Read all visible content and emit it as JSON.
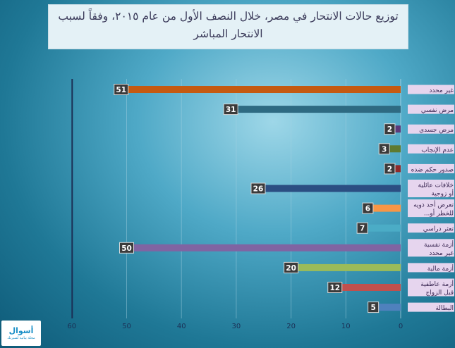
{
  "title": "توزيع حالات الانتحار في مصر، خلال النصف الأول من عام ٢٠١٥، وفقاً لسبب الانتحار المباشر",
  "logo": {
    "name": "أسوال",
    "tagline": "مجلة بيانية لسيرتك"
  },
  "chart_data": {
    "type": "bar",
    "orientation": "horizontal",
    "x_direction": "reversed",
    "xlim": [
      0,
      60
    ],
    "xticks": [
      60,
      50,
      40,
      30,
      20,
      10,
      0
    ],
    "grid": true,
    "legend": "none",
    "categories": [
      "غير محدد",
      "مرض نفسي",
      "مرض جسدي",
      "عدم الإنجاب",
      "صدور حكم ضده",
      "خلافات عائلية أو زوجية",
      "تعرض أحد ذويه للخطر أو...",
      "تعثر دراسي",
      "أزمة نفسية غير محدد سببها",
      "أزمة مالية",
      "أزمة عاطفية قبل الزواج",
      "البطالة"
    ],
    "values": [
      51,
      31,
      2,
      3,
      2,
      26,
      6,
      7,
      50,
      20,
      12,
      5
    ],
    "colors": [
      "#c55a11",
      "#2e6a82",
      "#5b3a7a",
      "#5e7a30",
      "#8e2a2a",
      "#2b4e82",
      "#f79646",
      "#4bacc6",
      "#8064a2",
      "#9bbb59",
      "#c0504d",
      "#4f81bd"
    ]
  }
}
